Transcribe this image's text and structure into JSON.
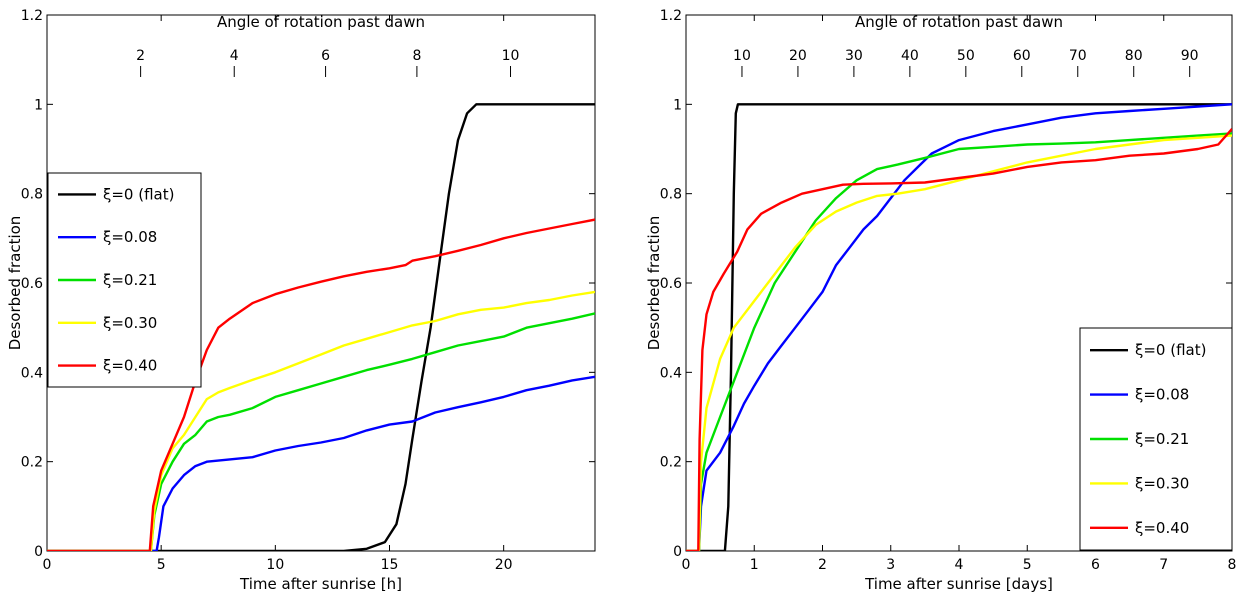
{
  "chart_data": [
    {
      "type": "line",
      "title": "",
      "top_axis_label": "Angle of rotation past dawn",
      "top_ticks": [
        {
          "label": "2",
          "at_x": 4.1
        },
        {
          "label": "4",
          "at_x": 8.2
        },
        {
          "label": "6",
          "at_x": 12.2
        },
        {
          "label": "8",
          "at_x": 16.2
        },
        {
          "label": "10",
          "at_x": 20.3
        }
      ],
      "xlabel": "Time after sunrise [h]",
      "ylabel": "Desorbed fraction",
      "xlim": [
        0,
        24
      ],
      "ylim": [
        0,
        1.2
      ],
      "xticks": [
        0,
        5,
        10,
        15,
        20
      ],
      "yticks": [
        0,
        0.2,
        0.4,
        0.6,
        0.8,
        1,
        1.2
      ],
      "grid": false,
      "legend_position": "middle-left",
      "series": [
        {
          "name": "ξ=0 (flat)",
          "color": "#000000",
          "points": [
            [
              0,
              0
            ],
            [
              13,
              0.0
            ],
            [
              14,
              0.005
            ],
            [
              14.8,
              0.02
            ],
            [
              15.3,
              0.06
            ],
            [
              15.7,
              0.15
            ],
            [
              16,
              0.25
            ],
            [
              16.4,
              0.38
            ],
            [
              16.8,
              0.5
            ],
            [
              17.2,
              0.65
            ],
            [
              17.6,
              0.8
            ],
            [
              18,
              0.92
            ],
            [
              18.4,
              0.98
            ],
            [
              18.8,
              1.0
            ],
            [
              24,
              1.0
            ]
          ]
        },
        {
          "name": "ξ=0.08",
          "color": "#0000ff",
          "points": [
            [
              0,
              0
            ],
            [
              4.8,
              0
            ],
            [
              4.9,
              0.03
            ],
            [
              5.1,
              0.1
            ],
            [
              5.5,
              0.14
            ],
            [
              6,
              0.17
            ],
            [
              6.5,
              0.19
            ],
            [
              7,
              0.2
            ],
            [
              8,
              0.205
            ],
            [
              9,
              0.21
            ],
            [
              10,
              0.225
            ],
            [
              11,
              0.235
            ],
            [
              12,
              0.243
            ],
            [
              13,
              0.253
            ],
            [
              14,
              0.27
            ],
            [
              15,
              0.283
            ],
            [
              16,
              0.29
            ],
            [
              17,
              0.31
            ],
            [
              18,
              0.322
            ],
            [
              19,
              0.333
            ],
            [
              20,
              0.345
            ],
            [
              21,
              0.36
            ],
            [
              22,
              0.37
            ],
            [
              23,
              0.382
            ],
            [
              24,
              0.39
            ]
          ]
        },
        {
          "name": "ξ=0.21",
          "color": "#00e000",
          "points": [
            [
              0,
              0
            ],
            [
              4.55,
              0
            ],
            [
              4.7,
              0.08
            ],
            [
              5,
              0.15
            ],
            [
              5.5,
              0.2
            ],
            [
              6,
              0.24
            ],
            [
              6.5,
              0.26
            ],
            [
              7,
              0.29
            ],
            [
              7.5,
              0.3
            ],
            [
              8,
              0.305
            ],
            [
              9,
              0.32
            ],
            [
              10,
              0.345
            ],
            [
              11,
              0.36
            ],
            [
              12,
              0.375
            ],
            [
              13,
              0.39
            ],
            [
              14,
              0.405
            ],
            [
              15,
              0.417
            ],
            [
              16,
              0.43
            ],
            [
              17,
              0.445
            ],
            [
              18,
              0.46
            ],
            [
              19,
              0.47
            ],
            [
              20,
              0.48
            ],
            [
              21,
              0.5
            ],
            [
              22,
              0.51
            ],
            [
              23,
              0.52
            ],
            [
              24,
              0.532
            ]
          ]
        },
        {
          "name": "ξ=0.30",
          "color": "#ffff00",
          "points": [
            [
              0,
              0
            ],
            [
              4.55,
              0
            ],
            [
              4.7,
              0.09
            ],
            [
              5,
              0.17
            ],
            [
              5.5,
              0.23
            ],
            [
              6,
              0.26
            ],
            [
              6.5,
              0.3
            ],
            [
              7,
              0.34
            ],
            [
              7.5,
              0.355
            ],
            [
              8,
              0.365
            ],
            [
              9,
              0.383
            ],
            [
              10,
              0.4
            ],
            [
              11,
              0.42
            ],
            [
              12,
              0.44
            ],
            [
              13,
              0.46
            ],
            [
              14,
              0.475
            ],
            [
              15,
              0.49
            ],
            [
              16,
              0.505
            ],
            [
              17,
              0.515
            ],
            [
              18,
              0.53
            ],
            [
              19,
              0.54
            ],
            [
              20,
              0.545
            ],
            [
              21,
              0.555
            ],
            [
              22,
              0.562
            ],
            [
              23,
              0.572
            ],
            [
              24,
              0.58
            ]
          ]
        },
        {
          "name": "ξ=0.40",
          "color": "#ff0000",
          "points": [
            [
              0,
              0
            ],
            [
              4.5,
              0
            ],
            [
              4.65,
              0.1
            ],
            [
              5,
              0.18
            ],
            [
              5.5,
              0.24
            ],
            [
              6,
              0.3
            ],
            [
              6.5,
              0.38
            ],
            [
              7,
              0.45
            ],
            [
              7.5,
              0.5
            ],
            [
              8,
              0.52
            ],
            [
              9,
              0.555
            ],
            [
              10,
              0.575
            ],
            [
              11,
              0.59
            ],
            [
              12,
              0.603
            ],
            [
              13,
              0.615
            ],
            [
              14,
              0.625
            ],
            [
              15,
              0.633
            ],
            [
              15.7,
              0.64
            ],
            [
              16,
              0.65
            ],
            [
              17,
              0.66
            ],
            [
              18,
              0.672
            ],
            [
              19,
              0.685
            ],
            [
              20,
              0.7
            ],
            [
              21,
              0.712
            ],
            [
              22,
              0.722
            ],
            [
              23,
              0.732
            ],
            [
              24,
              0.742
            ]
          ]
        }
      ]
    },
    {
      "type": "line",
      "title": "",
      "top_axis_label": "Angle of rotation past dawn",
      "top_ticks": [
        {
          "label": "10",
          "at_x": 0.82
        },
        {
          "label": "20",
          "at_x": 1.64
        },
        {
          "label": "30",
          "at_x": 2.46
        },
        {
          "label": "40",
          "at_x": 3.28
        },
        {
          "label": "50",
          "at_x": 4.1
        },
        {
          "label": "60",
          "at_x": 4.92
        },
        {
          "label": "70",
          "at_x": 5.74
        },
        {
          "label": "80",
          "at_x": 6.56
        },
        {
          "label": "90",
          "at_x": 7.38
        }
      ],
      "xlabel": "Time after sunrise [days]",
      "ylabel": "Desorbed fraction",
      "xlim": [
        0,
        8
      ],
      "ylim": [
        0,
        1.2
      ],
      "xticks": [
        0,
        1,
        2,
        3,
        4,
        5,
        6,
        7,
        8
      ],
      "yticks": [
        0,
        0.2,
        0.4,
        0.6,
        0.8,
        1,
        1.2
      ],
      "grid": false,
      "legend_position": "bottom-right",
      "series": [
        {
          "name": "ξ=0 (flat)",
          "color": "#000000",
          "points": [
            [
              0,
              0
            ],
            [
              0.57,
              0
            ],
            [
              0.62,
              0.1
            ],
            [
              0.66,
              0.4
            ],
            [
              0.7,
              0.8
            ],
            [
              0.73,
              0.98
            ],
            [
              0.76,
              1.0
            ],
            [
              8,
              1.0
            ]
          ]
        },
        {
          "name": "ξ=0.08",
          "color": "#0000ff",
          "points": [
            [
              0,
              0
            ],
            [
              0.19,
              0
            ],
            [
              0.22,
              0.1
            ],
            [
              0.3,
              0.18
            ],
            [
              0.5,
              0.22
            ],
            [
              0.7,
              0.28
            ],
            [
              0.85,
              0.33
            ],
            [
              1,
              0.37
            ],
            [
              1.2,
              0.42
            ],
            [
              1.4,
              0.46
            ],
            [
              1.6,
              0.5
            ],
            [
              1.8,
              0.54
            ],
            [
              2,
              0.58
            ],
            [
              2.2,
              0.64
            ],
            [
              2.4,
              0.68
            ],
            [
              2.6,
              0.72
            ],
            [
              2.8,
              0.75
            ],
            [
              3,
              0.79
            ],
            [
              3.2,
              0.83
            ],
            [
              3.4,
              0.86
            ],
            [
              3.6,
              0.89
            ],
            [
              3.8,
              0.905
            ],
            [
              4,
              0.92
            ],
            [
              4.5,
              0.94
            ],
            [
              5,
              0.955
            ],
            [
              5.5,
              0.97
            ],
            [
              6,
              0.98
            ],
            [
              6.5,
              0.985
            ],
            [
              7,
              0.99
            ],
            [
              7.5,
              0.995
            ],
            [
              8,
              1.0
            ]
          ]
        },
        {
          "name": "ξ=0.21",
          "color": "#00e000",
          "points": [
            [
              0,
              0
            ],
            [
              0.19,
              0
            ],
            [
              0.22,
              0.15
            ],
            [
              0.3,
              0.22
            ],
            [
              0.5,
              0.3
            ],
            [
              0.7,
              0.38
            ],
            [
              1,
              0.5
            ],
            [
              1.3,
              0.6
            ],
            [
              1.6,
              0.67
            ],
            [
              1.9,
              0.74
            ],
            [
              2.2,
              0.79
            ],
            [
              2.5,
              0.83
            ],
            [
              2.8,
              0.855
            ],
            [
              3.1,
              0.865
            ],
            [
              3.5,
              0.88
            ],
            [
              4,
              0.9
            ],
            [
              4.5,
              0.905
            ],
            [
              5,
              0.91
            ],
            [
              5.5,
              0.912
            ],
            [
              6,
              0.915
            ],
            [
              6.5,
              0.92
            ],
            [
              7,
              0.925
            ],
            [
              7.5,
              0.93
            ],
            [
              8,
              0.935
            ]
          ]
        },
        {
          "name": "ξ=0.30",
          "color": "#ffff00",
          "points": [
            [
              0,
              0
            ],
            [
              0.19,
              0
            ],
            [
              0.22,
              0.2
            ],
            [
              0.3,
              0.32
            ],
            [
              0.5,
              0.43
            ],
            [
              0.7,
              0.5
            ],
            [
              1,
              0.56
            ],
            [
              1.3,
              0.62
            ],
            [
              1.6,
              0.68
            ],
            [
              1.9,
              0.73
            ],
            [
              2.2,
              0.76
            ],
            [
              2.5,
              0.78
            ],
            [
              2.8,
              0.795
            ],
            [
              3.1,
              0.8
            ],
            [
              3.5,
              0.81
            ],
            [
              4,
              0.83
            ],
            [
              4.5,
              0.85
            ],
            [
              5,
              0.87
            ],
            [
              5.5,
              0.885
            ],
            [
              6,
              0.9
            ],
            [
              6.5,
              0.91
            ],
            [
              7,
              0.92
            ],
            [
              7.5,
              0.925
            ],
            [
              8,
              0.93
            ]
          ]
        },
        {
          "name": "ξ=0.40",
          "color": "#ff0000",
          "points": [
            [
              0,
              0
            ],
            [
              0.18,
              0
            ],
            [
              0.2,
              0.25
            ],
            [
              0.24,
              0.45
            ],
            [
              0.3,
              0.53
            ],
            [
              0.4,
              0.58
            ],
            [
              0.55,
              0.62
            ],
            [
              0.75,
              0.67
            ],
            [
              0.9,
              0.72
            ],
            [
              1.1,
              0.755
            ],
            [
              1.4,
              0.78
            ],
            [
              1.7,
              0.8
            ],
            [
              2,
              0.81
            ],
            [
              2.3,
              0.82
            ],
            [
              2.6,
              0.822
            ],
            [
              3,
              0.823
            ],
            [
              3.5,
              0.825
            ],
            [
              4,
              0.835
            ],
            [
              4.5,
              0.845
            ],
            [
              5,
              0.86
            ],
            [
              5.5,
              0.87
            ],
            [
              6,
              0.875
            ],
            [
              6.5,
              0.885
            ],
            [
              7,
              0.89
            ],
            [
              7.5,
              0.9
            ],
            [
              7.8,
              0.91
            ],
            [
              8,
              0.945
            ]
          ]
        }
      ]
    }
  ]
}
